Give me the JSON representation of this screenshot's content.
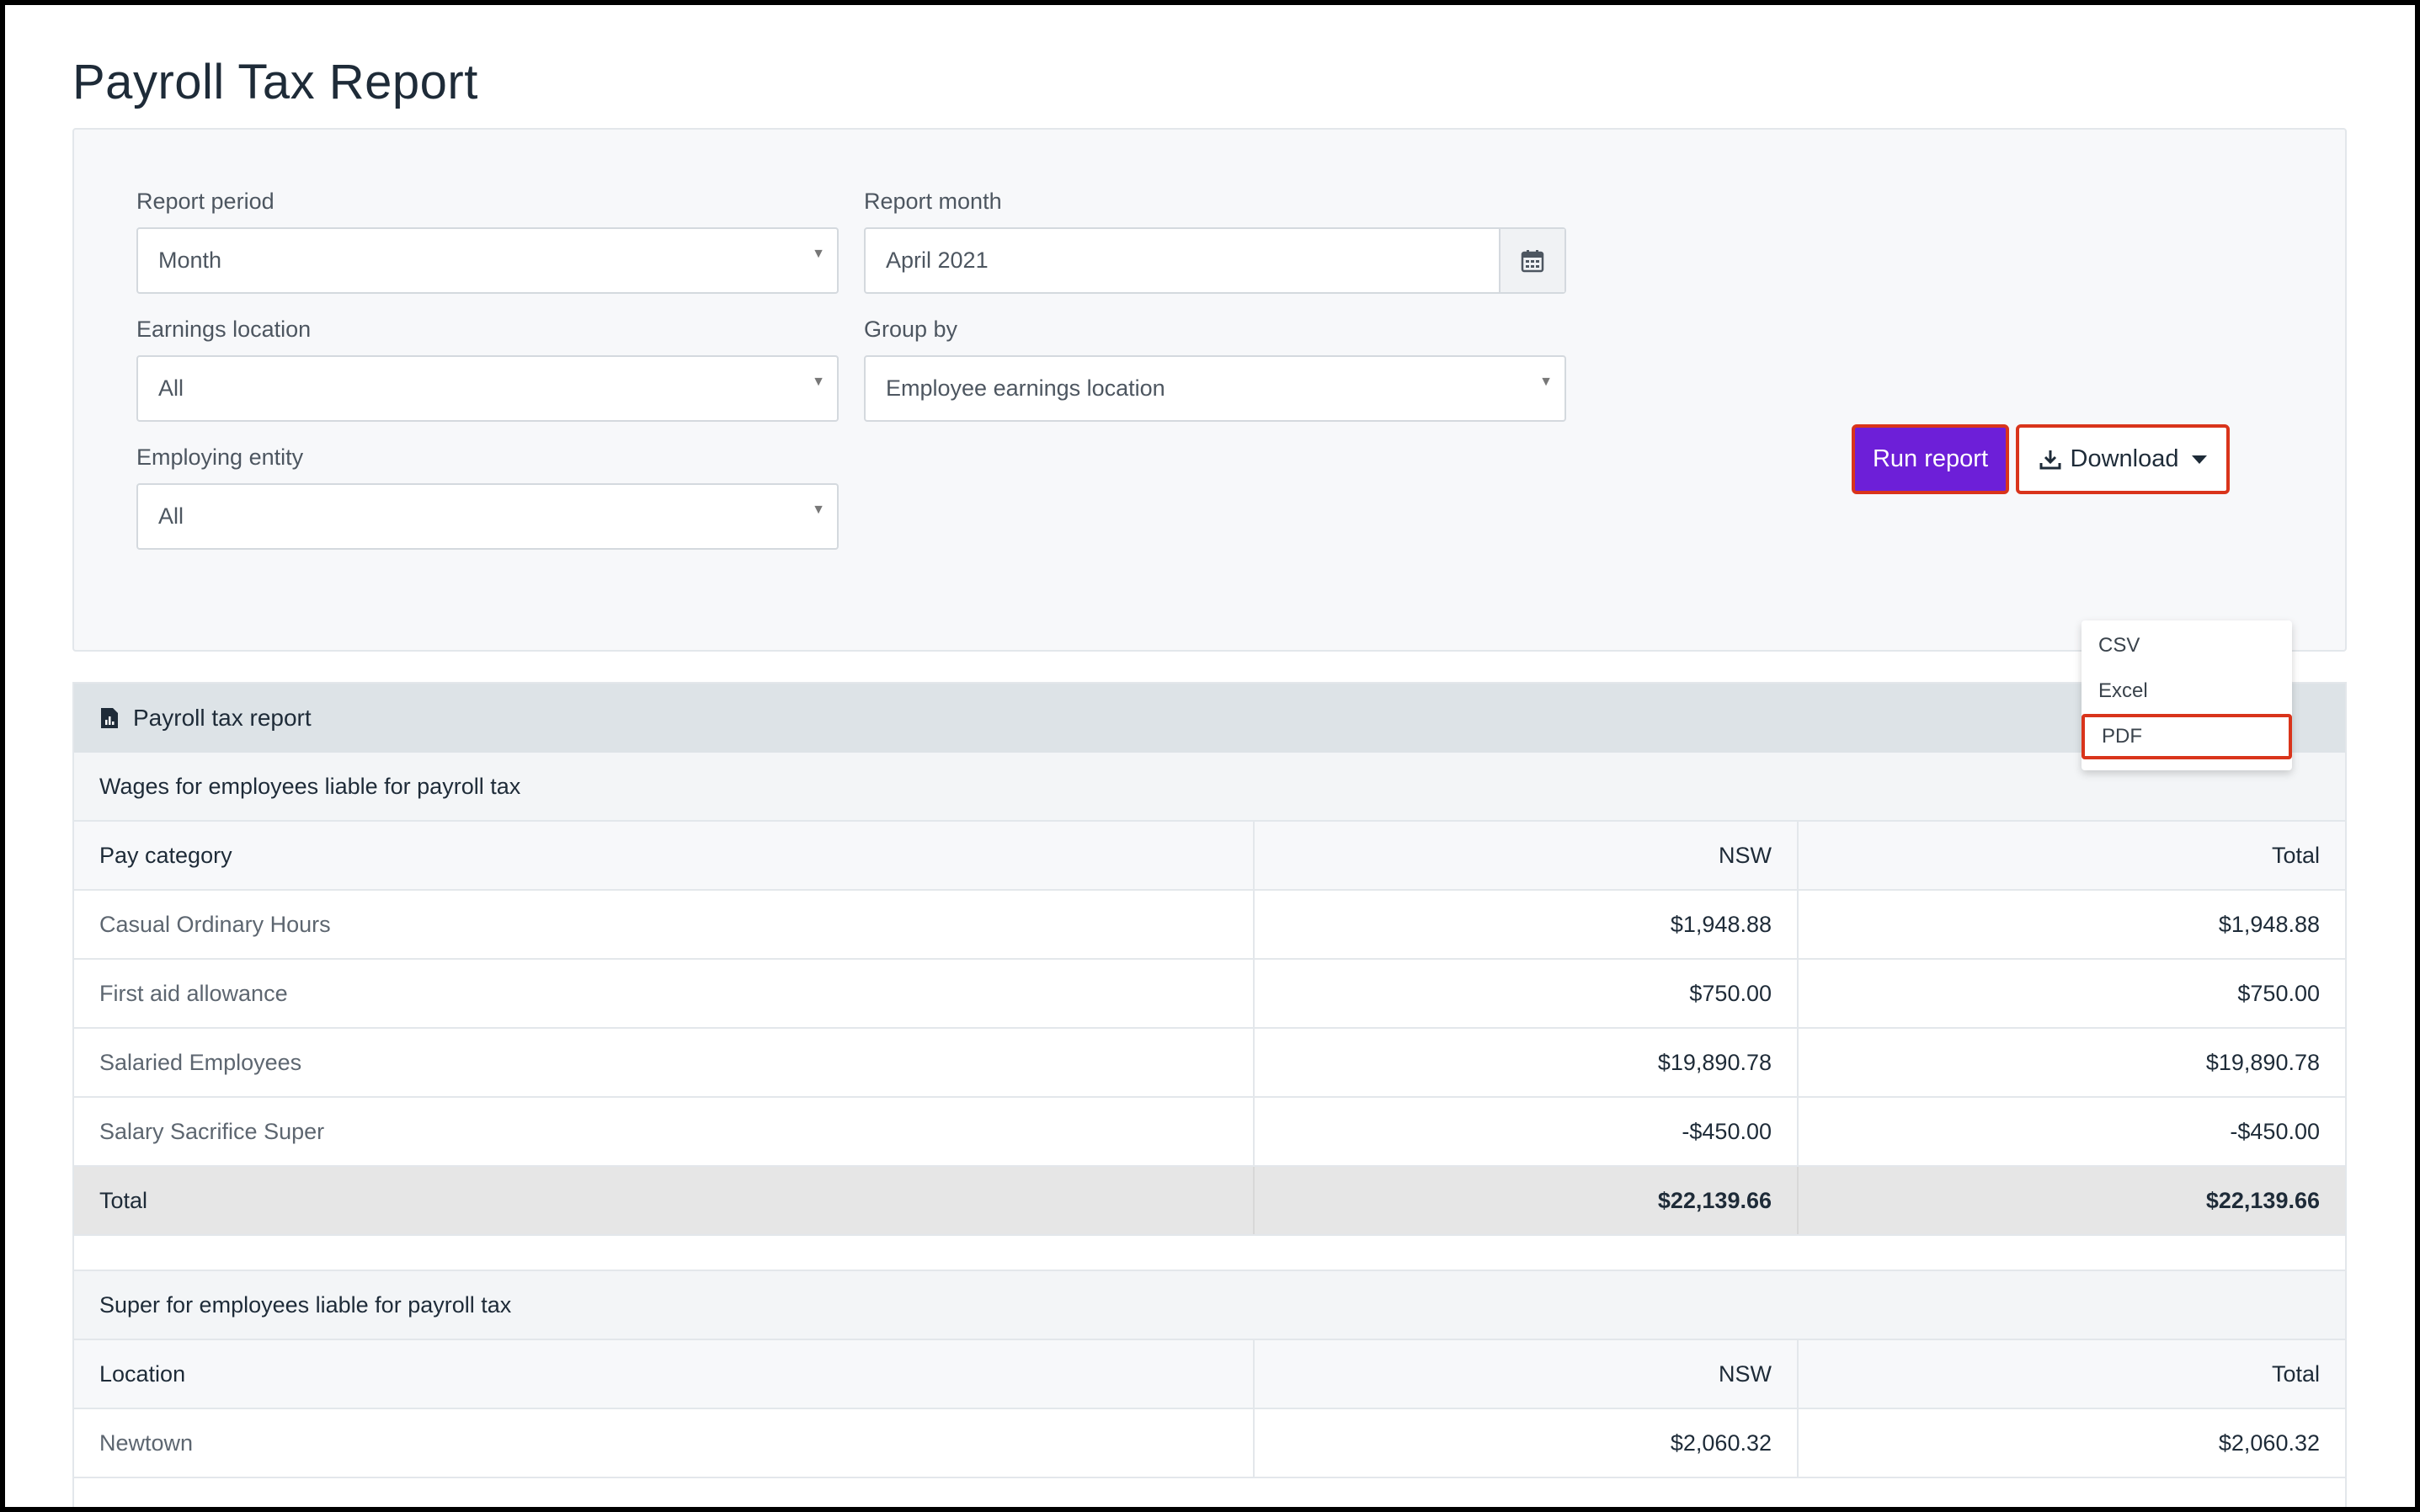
{
  "page": {
    "title": "Payroll Tax Report"
  },
  "filters": {
    "report_period": {
      "label": "Report period",
      "value": "Month"
    },
    "report_month": {
      "label": "Report month",
      "value": "April 2021"
    },
    "earnings_location": {
      "label": "Earnings location",
      "value": "All"
    },
    "group_by": {
      "label": "Group by",
      "value": "Employee earnings location"
    },
    "employing_entity": {
      "label": "Employing entity",
      "value": "All"
    }
  },
  "actions": {
    "run_label": "Run report",
    "download_label": "Download",
    "download_options": [
      "CSV",
      "Excel",
      "PDF"
    ]
  },
  "report": {
    "header": "Payroll tax report",
    "wages_section": {
      "title": "Wages for employees liable for payroll tax",
      "columns": [
        "Pay category",
        "NSW",
        "Total"
      ],
      "rows": [
        [
          "Casual Ordinary Hours",
          "$1,948.88",
          "$1,948.88"
        ],
        [
          "First aid allowance",
          "$750.00",
          "$750.00"
        ],
        [
          "Salaried Employees",
          "$19,890.78",
          "$19,890.78"
        ],
        [
          "Salary Sacrifice Super",
          "-$450.00",
          "-$450.00"
        ]
      ],
      "total": [
        "Total",
        "$22,139.66",
        "$22,139.66"
      ]
    },
    "super_section": {
      "title": "Super for employees liable for payroll tax",
      "columns": [
        "Location",
        "NSW",
        "Total"
      ],
      "rows": [
        [
          "Newtown",
          "$2,060.32",
          "$2,060.32"
        ]
      ]
    }
  },
  "colors": {
    "accent": "#6d1fd8",
    "highlight_border": "#d9341b",
    "header_bg": "#dde3e7",
    "total_bg": "#e6e6e6"
  },
  "icons": {
    "report_icon": "report-chart-icon",
    "calendar": "calendar-icon",
    "download": "download-icon",
    "caret": "caret-down-icon"
  }
}
